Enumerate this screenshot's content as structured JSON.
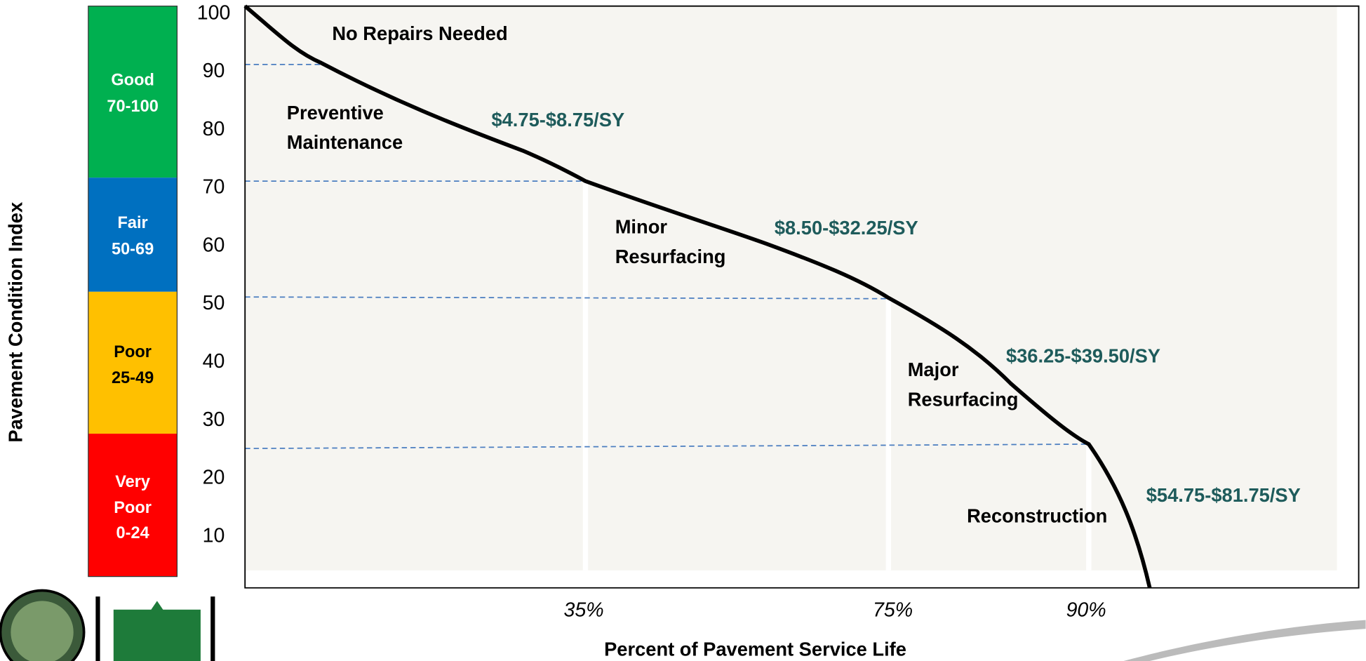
{
  "axis": {
    "y_title": "Pavement Condition Index",
    "x_title": "Percent of Pavement Service Life",
    "y_ticks": [
      "100",
      "90",
      "80",
      "70",
      "60",
      "50",
      "40",
      "30",
      "20",
      "10"
    ],
    "x_ticks": [
      "35%",
      "75%",
      "90%"
    ]
  },
  "bands": [
    {
      "name": "Good",
      "range": "70-100"
    },
    {
      "name": "Fair",
      "range": "50-69"
    },
    {
      "name": "Poor",
      "range": "25-49"
    },
    {
      "name": "Very",
      "name2": "Poor",
      "range": "0-24"
    }
  ],
  "zones": [
    {
      "label": [
        "No Repairs Needed"
      ]
    },
    {
      "label": [
        "Preventive",
        "Maintenance"
      ],
      "cost": "$4.75-$8.75/SY"
    },
    {
      "label": [
        "Minor",
        "Resurfacing"
      ],
      "cost": "$8.50-$32.25/SY"
    },
    {
      "label": [
        "Major",
        "Resurfacing"
      ],
      "cost": "$36.25-$39.50/SY"
    },
    {
      "label": [
        "Reconstruction"
      ],
      "cost": "$54.75-$81.75/SY"
    }
  ]
}
